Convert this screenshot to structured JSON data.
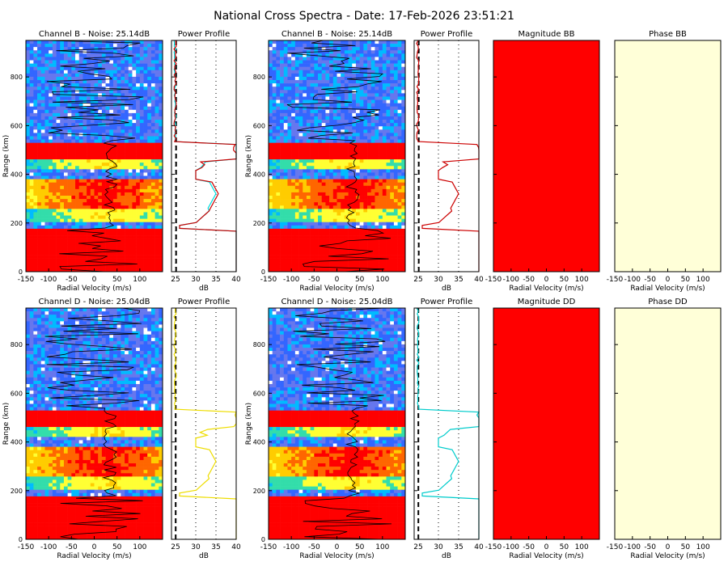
{
  "colors": {
    "spectrum_low": "#ffffff",
    "blue": "#3344dd",
    "red": "#ff0000",
    "cyan": "#22ccee",
    "yellow": "#ffee22",
    "phase_fill": "#ffffd8",
    "black": "#000000"
  },
  "chart_data": {
    "title": "National Cross Spectra - Date: 17-Feb-2026 23:51:21",
    "rows": [
      {
        "channel": "B",
        "spectra_title": "Channel B - Noise: 25.14dB",
        "profile_title": "Power Profile",
        "magnitude_title": "Magnitude BB",
        "phase_title": "Phase BB",
        "profile_color": "#ff0000",
        "profile_series": [
          "#00dddd",
          "#cc0000"
        ],
        "cross_profile_series": [
          "#cc0000"
        ]
      },
      {
        "channel": "D",
        "spectra_title": "Channel D - Noise: 25.04dB",
        "profile_title": "Power Profile",
        "magnitude_title": "Magnitude DD",
        "phase_title": "Phase DD",
        "profile_color": "#ffee22",
        "profile_series": [
          "#eedd00"
        ],
        "cross_profile_series": [
          "#00cccc"
        ]
      }
    ],
    "spectra_xlabel": "Radial Velocity (m/s)",
    "spectra_ylabel": "Range (km)",
    "profile_xlabel": "dB",
    "velocity_range": [
      -150,
      150
    ],
    "velocity_ticks": [
      "-150",
      "-100",
      "-50",
      "0",
      "50",
      "100"
    ],
    "range_km": [
      0,
      950
    ],
    "range_ticks": [
      "0",
      "200",
      "400",
      "600",
      "800"
    ],
    "db_range": [
      24,
      40
    ],
    "db_ticks": [
      "25",
      "30",
      "35",
      "40"
    ],
    "noise_db": [
      25.14,
      25.04
    ],
    "profile_bands": [
      {
        "from_km": 0,
        "to_km": 170,
        "level": "saturated"
      },
      {
        "from_km": 200,
        "to_km": 260,
        "level": "medium"
      },
      {
        "from_km": 260,
        "to_km": 380,
        "level": "strong"
      },
      {
        "from_km": 420,
        "to_km": 460,
        "level": "medium"
      },
      {
        "from_km": 460,
        "to_km": 530,
        "level": "saturated"
      }
    ]
  }
}
